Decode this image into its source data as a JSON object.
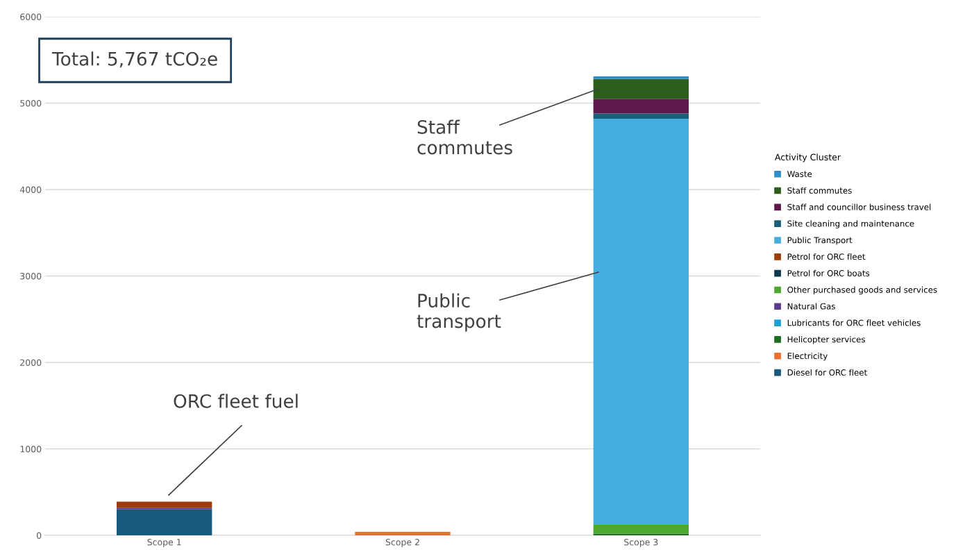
{
  "chart_data": {
    "type": "bar",
    "stacked": true,
    "categories": [
      "Scope 1",
      "Scope 2",
      "Scope 3"
    ],
    "ylim": [
      0,
      6000
    ],
    "yticks": [
      0,
      1000,
      2000,
      3000,
      4000,
      5000,
      6000
    ],
    "grid": "y",
    "legend": "right",
    "legend_title": "Activity Cluster",
    "series": [
      {
        "name": "Diesel for ORC fleet",
        "color": "#175a7c",
        "values": [
          300,
          null,
          null
        ]
      },
      {
        "name": "Electricity",
        "color": "#ea7030",
        "values": [
          null,
          40,
          null
        ]
      },
      {
        "name": "Helicopter services",
        "color": "#1e6e1e",
        "values": [
          null,
          null,
          20
        ]
      },
      {
        "name": "Lubricants for ORC fleet vehicles",
        "color": "#1ea0d8",
        "values": [
          null,
          null,
          null
        ]
      },
      {
        "name": "Natural Gas",
        "color": "#5a3a8a",
        "values": [
          20,
          null,
          null
        ]
      },
      {
        "name": "Other purchased goods and services",
        "color": "#4ea82e",
        "values": [
          null,
          null,
          100
        ]
      },
      {
        "name": "Petrol for ORC boats",
        "color": "#0e3a4e",
        "values": [
          null,
          null,
          null
        ]
      },
      {
        "name": "Petrol for ORC fleet",
        "color": "#9e3d0c",
        "values": [
          70,
          null,
          null
        ]
      },
      {
        "name": "Public Transport",
        "color": "#45aee0",
        "values": [
          null,
          null,
          4700
        ]
      },
      {
        "name": "Site cleaning and maintenance",
        "color": "#1a5f7a",
        "values": [
          null,
          null,
          60
        ]
      },
      {
        "name": "Staff and councillor business travel",
        "color": "#5e1a4e",
        "values": [
          null,
          null,
          170
        ]
      },
      {
        "name": "Staff commutes",
        "color": "#2e5e1e",
        "values": [
          null,
          null,
          230
        ]
      },
      {
        "name": "Waste",
        "color": "#2e8fc8",
        "values": [
          null,
          null,
          30
        ]
      }
    ],
    "annotations": [
      "Total: 5,767 tCO₂e",
      "ORC fleet fuel",
      "Staff commutes",
      "Public transport"
    ]
  }
}
